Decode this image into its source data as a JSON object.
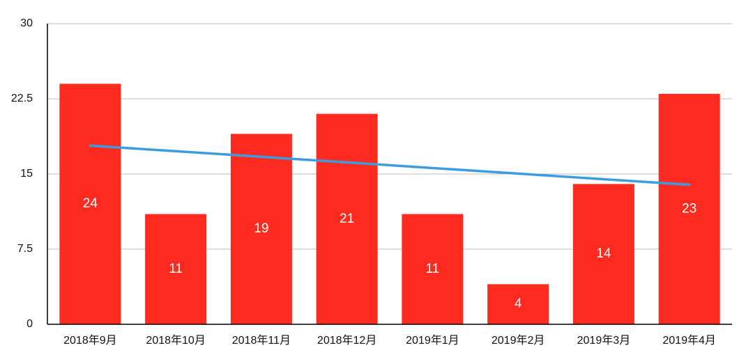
{
  "chart_data": {
    "type": "bar",
    "categories": [
      "2018年9月",
      "2018年10月",
      "2018年11月",
      "2018年12月",
      "2019年1月",
      "2019年2月",
      "2019年3月",
      "2019年4月"
    ],
    "values": [
      24,
      11,
      19,
      21,
      11,
      4,
      14,
      23
    ],
    "color": "#fc2a1f",
    "ylim": [
      0,
      30
    ],
    "yticks": [
      0,
      7.5,
      15,
      22.5,
      30
    ],
    "grid": true,
    "trendline": {
      "color": "#3a9de0",
      "values": [
        17.83,
        13.92
      ]
    }
  }
}
